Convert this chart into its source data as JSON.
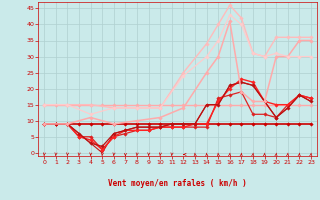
{
  "xlabel": "Vent moyen/en rafales ( km/h )",
  "bg_color": "#caeaea",
  "grid_color": "#b0d0d0",
  "xlim": [
    -0.5,
    23.5
  ],
  "ylim": [
    -1,
    47
  ],
  "yticks": [
    0,
    5,
    10,
    15,
    20,
    25,
    30,
    35,
    40,
    45
  ],
  "xticks": [
    0,
    1,
    2,
    3,
    4,
    5,
    6,
    7,
    8,
    9,
    10,
    11,
    12,
    13,
    14,
    15,
    16,
    17,
    18,
    19,
    20,
    21,
    22,
    23
  ],
  "series": [
    {
      "x": [
        0,
        1,
        2,
        3,
        4,
        5,
        6,
        7,
        8,
        9,
        10,
        11,
        12,
        13,
        14,
        15,
        16,
        17,
        18,
        19,
        20,
        21,
        22,
        23
      ],
      "y": [
        15,
        15,
        15,
        15,
        15,
        15,
        15,
        15,
        15,
        15,
        15,
        15,
        15,
        15,
        15,
        15,
        15,
        15,
        15,
        15,
        15,
        15,
        15,
        15
      ],
      "color": "#ffaaaa",
      "lw": 1.0,
      "marker": "D",
      "ms": 1.8,
      "zorder": 2
    },
    {
      "x": [
        0,
        1,
        2,
        3,
        4,
        5,
        6,
        7,
        8,
        9,
        10,
        11,
        12,
        13,
        14,
        15,
        16,
        17,
        18,
        19,
        20,
        21,
        22,
        23
      ],
      "y": [
        9,
        9,
        9,
        9,
        9,
        9,
        9,
        9,
        9,
        9,
        9,
        9,
        9,
        9,
        9,
        9,
        9,
        9,
        9,
        9,
        9,
        9,
        9,
        9
      ],
      "color": "#cc0000",
      "lw": 1.2,
      "marker": "D",
      "ms": 1.8,
      "zorder": 2
    },
    {
      "x": [
        0,
        1,
        2,
        3,
        4,
        5,
        6,
        7,
        8,
        9,
        10,
        11,
        12,
        13,
        14,
        15,
        16,
        17,
        18,
        19,
        20,
        21,
        22,
        23
      ],
      "y": [
        9,
        9,
        9,
        5,
        5,
        1,
        5,
        6,
        7,
        7,
        8,
        8,
        8,
        8,
        8,
        17,
        18,
        19,
        12,
        12,
        11,
        15,
        18,
        17
      ],
      "color": "#dd2222",
      "lw": 0.9,
      "marker": "D",
      "ms": 1.8,
      "zorder": 3
    },
    {
      "x": [
        0,
        1,
        2,
        3,
        4,
        5,
        6,
        7,
        8,
        9,
        10,
        11,
        12,
        13,
        14,
        15,
        16,
        17,
        18,
        19,
        20,
        21,
        22,
        23
      ],
      "y": [
        9,
        9,
        9,
        5,
        4,
        1,
        5,
        7,
        7,
        7,
        8,
        8,
        8,
        9,
        9,
        16,
        20,
        23,
        22,
        16,
        15,
        15,
        18,
        17
      ],
      "color": "#ff2222",
      "lw": 1.0,
      "marker": "D",
      "ms": 1.8,
      "zorder": 3
    },
    {
      "x": [
        0,
        1,
        2,
        3,
        4,
        5,
        6,
        7,
        8,
        9,
        10,
        11,
        12,
        13,
        14,
        15,
        16,
        17,
        18,
        19,
        20,
        21,
        22,
        23
      ],
      "y": [
        9,
        9,
        9,
        6,
        3,
        2,
        6,
        7,
        8,
        8,
        8,
        9,
        9,
        9,
        15,
        15,
        21,
        22,
        21,
        16,
        11,
        14,
        18,
        16
      ],
      "color": "#bb1111",
      "lw": 0.9,
      "marker": "D",
      "ms": 1.8,
      "zorder": 3
    },
    {
      "x": [
        0,
        1,
        2,
        3,
        4,
        5,
        6,
        7,
        8,
        9,
        10,
        11,
        12,
        13,
        14,
        15,
        16,
        17,
        18,
        19,
        20,
        21,
        22,
        23
      ],
      "y": [
        9,
        9,
        9,
        6,
        3,
        0,
        6,
        7,
        8,
        8,
        8,
        9,
        9,
        9,
        15,
        15,
        21,
        22,
        21,
        16,
        11,
        14,
        18,
        16
      ],
      "color": "#cc1111",
      "lw": 0.8,
      "marker": null,
      "zorder": 2
    },
    {
      "x": [
        0,
        2,
        4,
        6,
        8,
        10,
        12,
        14,
        15,
        16,
        17,
        18,
        19,
        20,
        21,
        22,
        23
      ],
      "y": [
        9,
        9,
        11,
        9,
        10,
        11,
        14,
        25,
        30,
        41,
        19,
        16,
        16,
        30,
        30,
        35,
        35
      ],
      "color": "#ffaaaa",
      "lw": 1.1,
      "marker": "D",
      "ms": 1.8,
      "zorder": 4
    },
    {
      "x": [
        0,
        2,
        4,
        6,
        8,
        10,
        12,
        14,
        15,
        16,
        17,
        18,
        19,
        20,
        21,
        22,
        23
      ],
      "y": [
        15,
        15,
        15,
        14,
        14,
        14,
        25,
        34,
        40,
        46,
        42,
        31,
        30,
        36,
        36,
        36,
        36
      ],
      "color": "#ffbbbb",
      "lw": 1.0,
      "marker": "D",
      "ms": 1.8,
      "zorder": 4
    },
    {
      "x": [
        0,
        2,
        4,
        6,
        8,
        10,
        12,
        14,
        15,
        16,
        17,
        18,
        19,
        20,
        21,
        22,
        23
      ],
      "y": [
        15,
        15,
        12,
        14,
        14,
        14,
        24,
        30,
        35,
        43,
        40,
        31,
        30,
        31,
        30,
        30,
        30
      ],
      "color": "#ffcccc",
      "lw": 0.9,
      "marker": "D",
      "ms": 1.8,
      "zorder": 4
    }
  ],
  "arrow_angles": [
    225,
    225,
    225,
    225,
    225,
    225,
    225,
    200,
    225,
    225,
    225,
    225,
    270,
    315,
    315,
    315,
    45,
    45,
    45,
    45,
    45,
    45,
    45,
    45
  ]
}
